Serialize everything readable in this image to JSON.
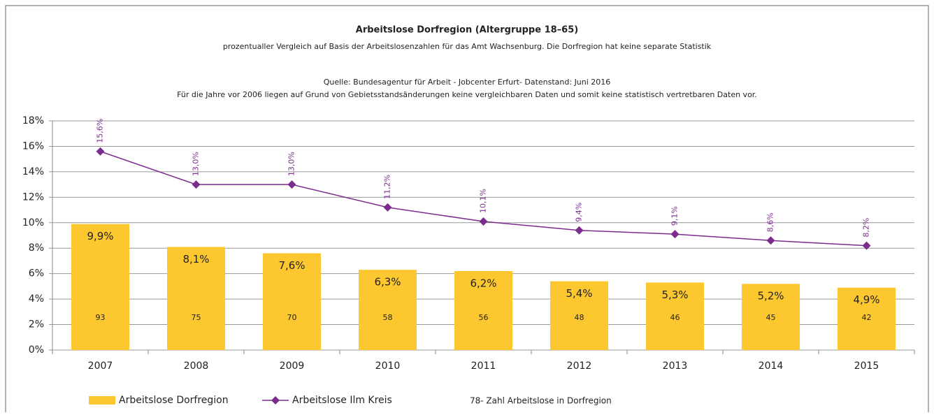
{
  "chart_data": {
    "type": "bar",
    "title": "Arbeitslose Dorfregion (Altergruppe 18–65)",
    "subtitle": "prozentualler Vergleich auf Basis der Arbeitslosenzahlen für das Amt Wachsenburg. Die Dorfregion hat keine separate Statistik",
    "annotations": [
      "Quelle: Bundesagentur für Arbeit - Jobcenter Erfurt- Datenstand: Juni 2016",
      "Für die Jahre vor 2006 liegen auf Grund von Gebietsstandsänderungen keine vergleichbaren Daten und somit keine statistisch vertretbaren Daten vor."
    ],
    "legend_note": "78- Zahl Arbeitslose in Dorfregion",
    "categories": [
      "2007",
      "2008",
      "2009",
      "2010",
      "2011",
      "2012",
      "2013",
      "2014",
      "2015"
    ],
    "series": [
      {
        "name": "Arbeitslose Dorfregion",
        "type": "bar",
        "color": "#fdc82f",
        "values": [
          9.9,
          8.1,
          7.6,
          6.3,
          6.2,
          5.4,
          5.3,
          5.2,
          4.9
        ],
        "value_labels": [
          "9,9%",
          "8,1%",
          "7,6%",
          "6,3%",
          "6,2%",
          "5,4%",
          "5,3%",
          "5,2%",
          "4,9%"
        ],
        "counts": [
          93,
          75,
          70,
          58,
          56,
          48,
          46,
          45,
          42
        ]
      },
      {
        "name": "Arbeitslose Ilm Kreis",
        "type": "line",
        "color": "#7b2d8e",
        "values": [
          15.6,
          13.0,
          13.0,
          11.2,
          10.1,
          9.4,
          9.1,
          8.6,
          8.2
        ],
        "value_labels": [
          "15,6%",
          "13,0%",
          "13,0%",
          "11,2%",
          "10,1%",
          "9,4%",
          "9,1%",
          "8,6%",
          "8,2%"
        ]
      }
    ],
    "ylim": [
      0,
      18
    ],
    "yticks": [
      {
        "value": 0,
        "label": "0%"
      },
      {
        "value": 2,
        "label": "2%"
      },
      {
        "value": 4,
        "label": "4%"
      },
      {
        "value": 6,
        "label": "6%"
      },
      {
        "value": 8,
        "label": "8%"
      },
      {
        "value": 10,
        "label": "10%"
      },
      {
        "value": 12,
        "label": "12%"
      },
      {
        "value": 14,
        "label": "14%"
      },
      {
        "value": 16,
        "label": "16%"
      },
      {
        "value": 18,
        "label": "18%"
      }
    ],
    "grid": true
  }
}
